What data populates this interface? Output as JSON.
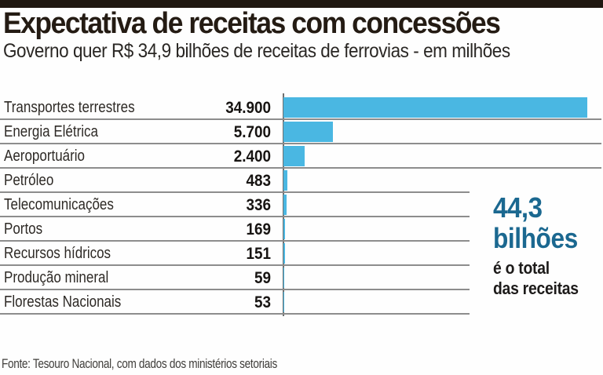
{
  "page": {
    "title": "Expectativa de receitas com concessões",
    "subtitle": "Governo quer R$ 34,9 bilhões de receitas de ferrovias - em milhões"
  },
  "chart_data": {
    "type": "bar",
    "orientation": "horizontal",
    "title": "Expectativa de receitas com concessões",
    "subtitle": "Governo quer R$ 34,9 bilhões de receitas de ferrovias - em milhões",
    "unit": "R$ milhões",
    "categories": [
      "Transportes terrestres",
      "Energia Elétrica",
      "Aeroportuário",
      "Petróleo",
      "Telecomunicações",
      "Portos",
      "Recursos hídricos",
      "Produção mineral",
      "Florestas Nacionais"
    ],
    "values": [
      34900,
      5700,
      2400,
      483,
      336,
      169,
      151,
      59,
      53
    ],
    "value_labels": [
      "34.900",
      "5.700",
      "2.400",
      "483",
      "336",
      "169",
      "151",
      "59",
      "53"
    ],
    "xlim": [
      0,
      34900
    ],
    "bar_color": "#4ab7e2",
    "grid": "row-dividers",
    "legend": "none",
    "annotation": {
      "value": "44,3",
      "value_unit": "bilhões",
      "caption_line1": "é o total",
      "caption_line2": "das receitas",
      "color": "#1b6890"
    }
  },
  "footer": {
    "source": "Fonte: Tesouro Nacional, com dados dos ministérios setoriais"
  },
  "colors": {
    "topbar": "#201811",
    "bar": "#4ab7e2",
    "annotation_blue": "#1b6890",
    "divider": "#8d8d8d",
    "axis": "#6f6f6f"
  }
}
